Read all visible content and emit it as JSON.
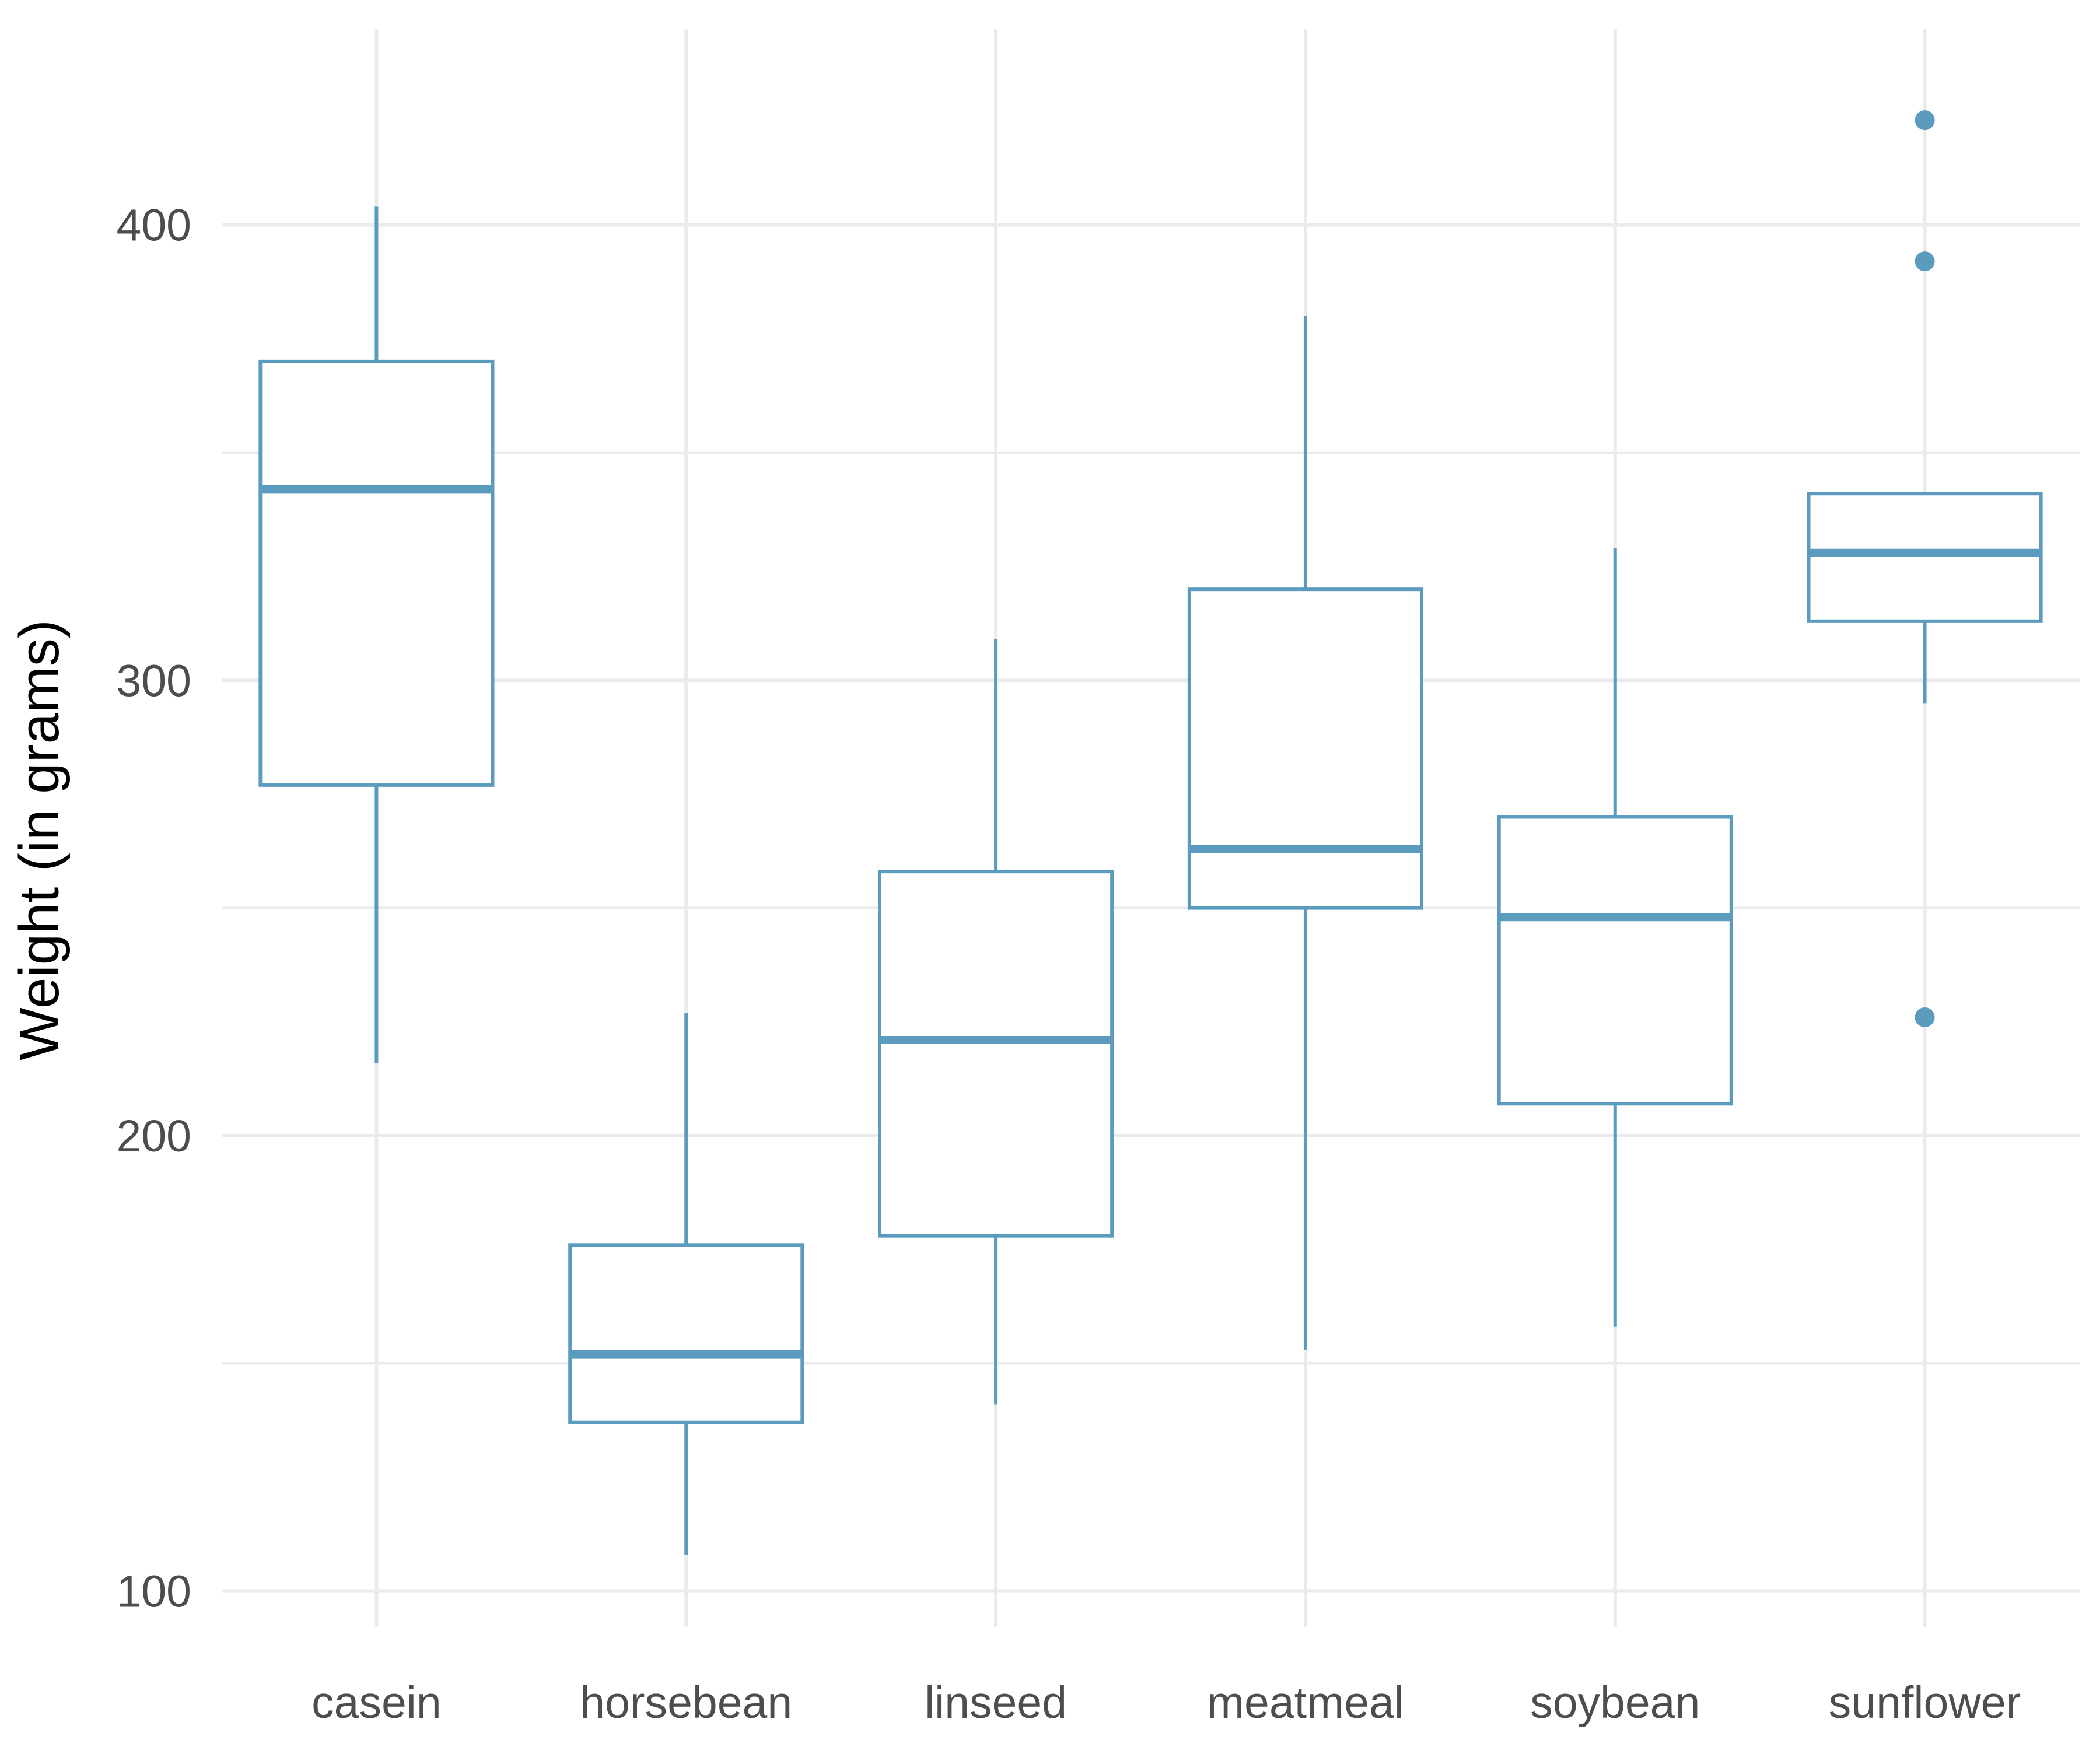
{
  "chart_data": {
    "type": "box",
    "title": "",
    "xlabel": "",
    "ylabel": "Weight (in grams)",
    "ylim": [
      92,
      443
    ],
    "yticks": [
      100,
      200,
      300,
      400
    ],
    "grid": true,
    "color": "#5b9bbd",
    "categories": [
      "casein",
      "horsebean",
      "linseed",
      "meatmeal",
      "soybean",
      "sunflower"
    ],
    "boxes": [
      {
        "category": "casein",
        "whisker_low": 216,
        "q1": 277,
        "median": 342,
        "q3": 370,
        "whisker_high": 404,
        "outliers": []
      },
      {
        "category": "horsebean",
        "whisker_low": 108,
        "q1": 137,
        "median": 152,
        "q3": 176,
        "whisker_high": 227,
        "outliers": []
      },
      {
        "category": "linseed",
        "whisker_low": 141,
        "q1": 178,
        "median": 221,
        "q3": 258,
        "whisker_high": 309,
        "outliers": []
      },
      {
        "category": "meatmeal",
        "whisker_low": 153,
        "q1": 250,
        "median": 263,
        "q3": 320,
        "whisker_high": 380,
        "outliers": []
      },
      {
        "category": "soybean",
        "whisker_low": 158,
        "q1": 207,
        "median": 248,
        "q3": 270,
        "whisker_high": 329,
        "outliers": []
      },
      {
        "category": "sunflower",
        "whisker_low": 295,
        "q1": 313,
        "median": 328,
        "q3": 341,
        "whisker_high": 341,
        "outliers": [
          423,
          392,
          226
        ]
      }
    ]
  }
}
